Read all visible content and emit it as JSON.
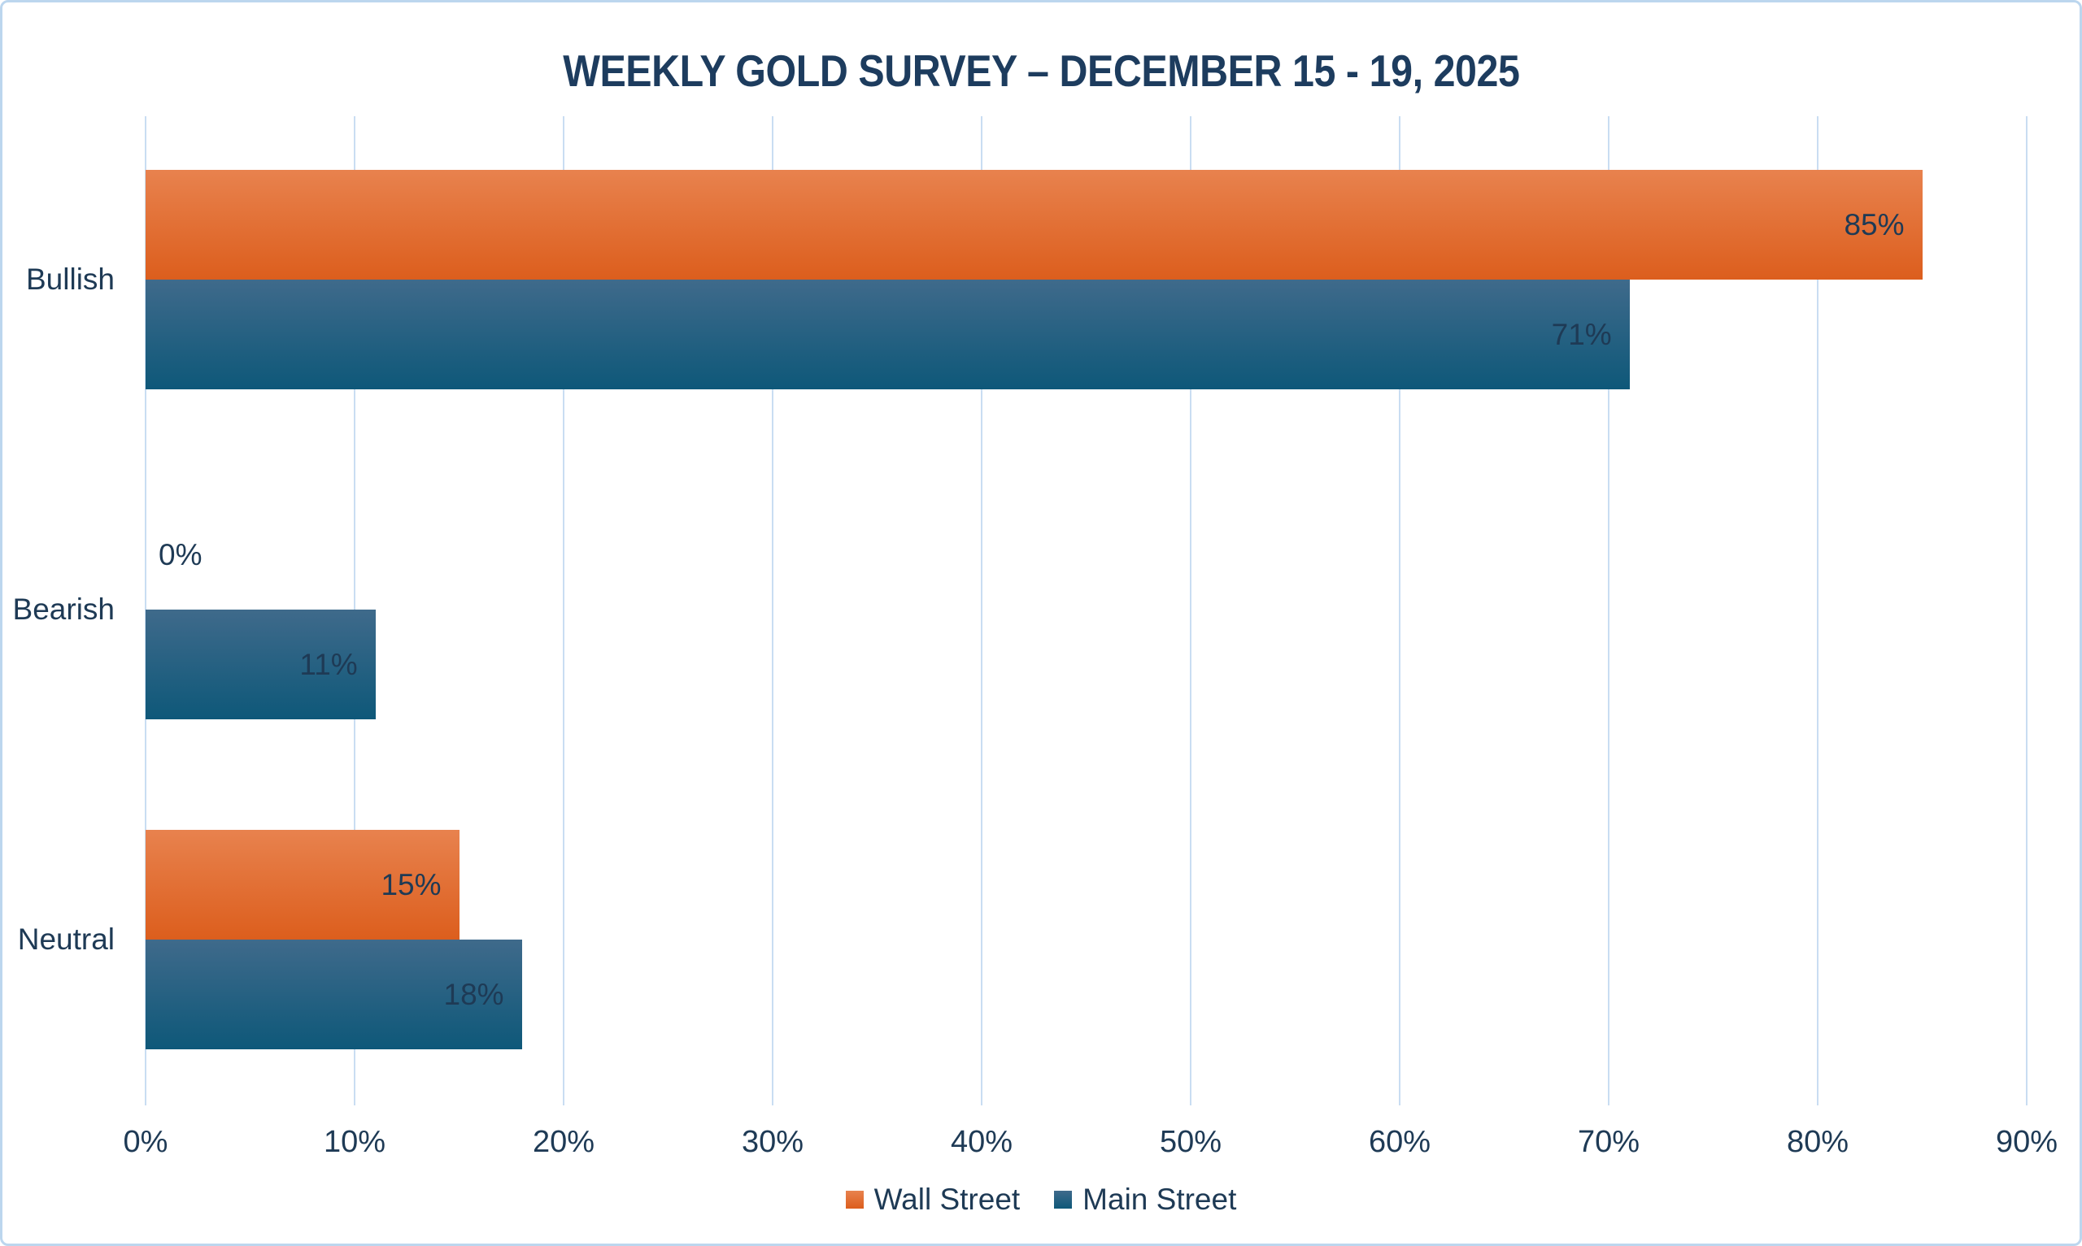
{
  "title": "WEEKLY GOLD SURVEY – DECEMBER 15 - 19, 2025",
  "chart_data": {
    "type": "bar",
    "orientation": "horizontal",
    "title": "WEEKLY GOLD SURVEY – DECEMBER 15 - 19, 2025",
    "categories": [
      "Bullish",
      "Bearish",
      "Neutral"
    ],
    "series": [
      {
        "name": "Wall Street",
        "values": [
          85,
          0,
          15
        ],
        "color_top": "#E8824E",
        "color_bottom": "#DC5E1D"
      },
      {
        "name": "Main Street",
        "values": [
          71,
          11,
          18
        ],
        "color_top": "#3F6A8B",
        "color_bottom": "#0E5879"
      }
    ],
    "value_suffix": "%",
    "data_label_position": "inside-end",
    "xlim": [
      0,
      90
    ],
    "x_tick_step": 10,
    "x_tick_labels": [
      "0%",
      "10%",
      "20%",
      "30%",
      "40%",
      "50%",
      "60%",
      "70%",
      "80%",
      "90%"
    ],
    "grid": true,
    "legend_position": "bottom"
  },
  "colors": {
    "background": "#FFFFFF",
    "border": "#BCD6EE",
    "gridline": "#C9DDF2",
    "text": "#1E3A55",
    "title_text": "#1D3C5E",
    "wall_street_top": "#E8824E",
    "wall_street_bottom": "#DC5E1D",
    "main_street_top": "#3F6A8B",
    "main_street_bottom": "#0E5879"
  }
}
